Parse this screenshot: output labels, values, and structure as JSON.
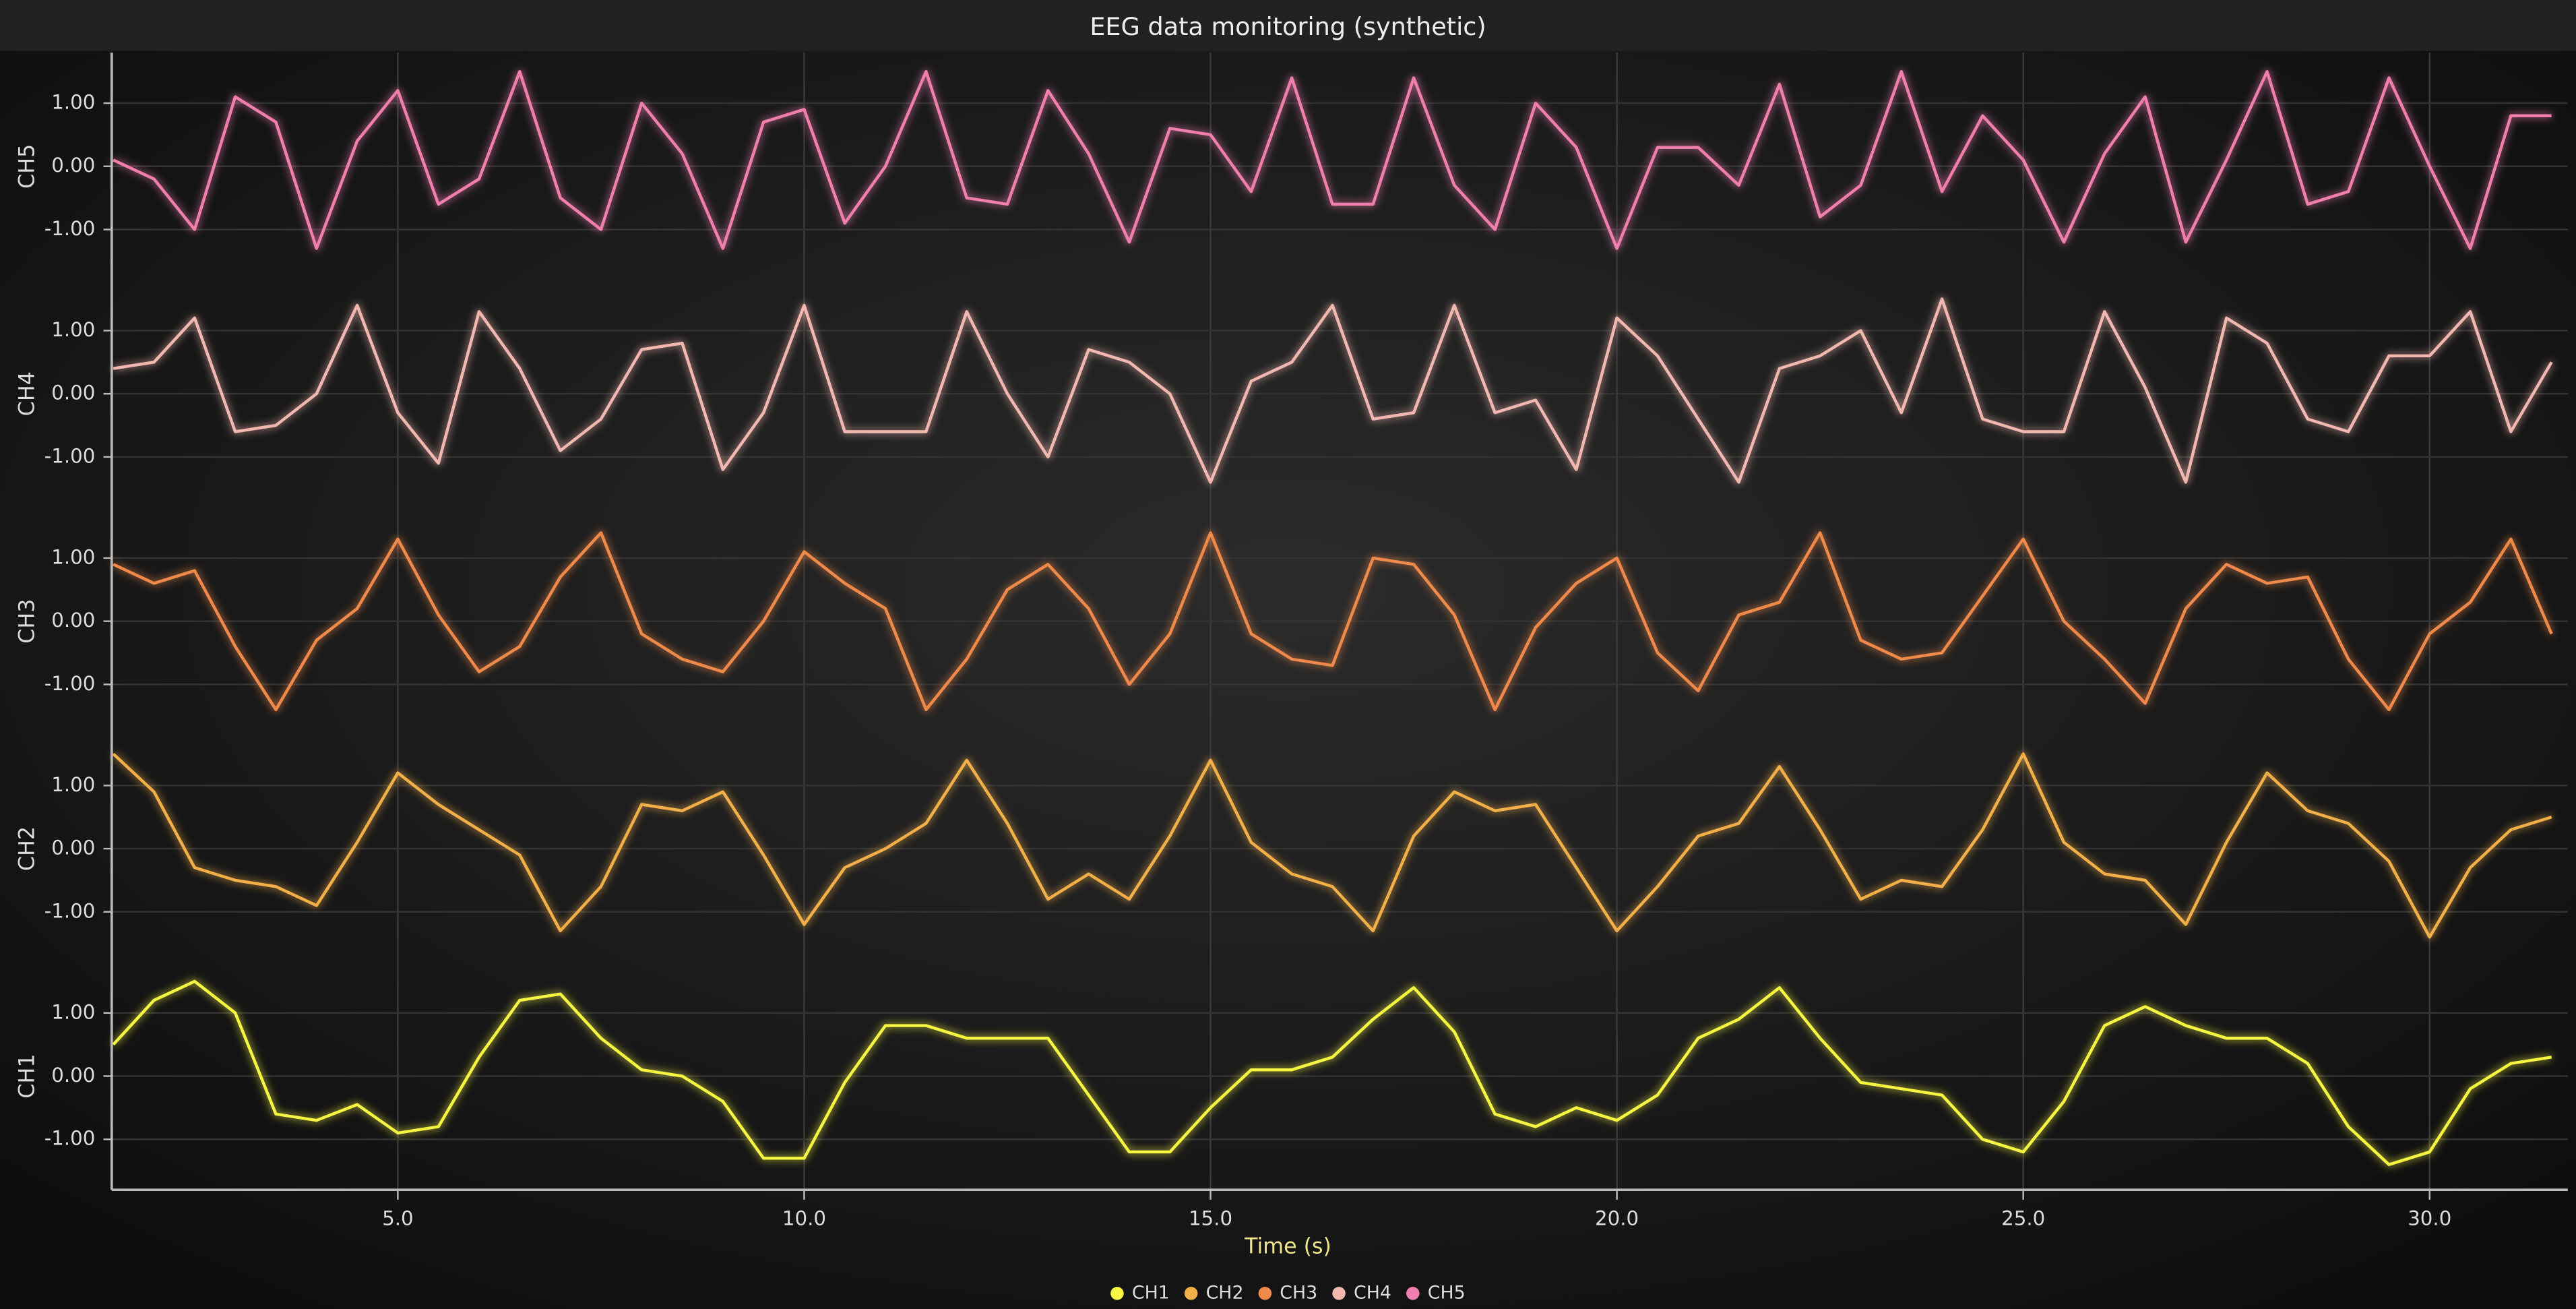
{
  "chart_data": {
    "type": "line",
    "title": "EEG data monitoring (synthetic)",
    "x_label": "Time (s)",
    "grid": true,
    "legend": "bottom",
    "x": [
      1.5,
      2,
      2.5,
      3,
      3.5,
      4,
      4.5,
      5,
      5.5,
      6,
      6.5,
      7,
      7.5,
      8,
      8.5,
      9,
      9.5,
      10,
      10.5,
      11,
      11.5,
      12,
      12.5,
      13,
      13.5,
      14,
      14.5,
      15,
      15.5,
      16,
      16.5,
      17,
      17.5,
      18,
      18.5,
      19,
      19.5,
      20,
      20.5,
      21,
      21.5,
      22,
      22.5,
      23,
      23.5,
      24,
      24.5,
      25,
      25.5,
      26,
      26.5,
      27,
      27.5,
      28,
      28.5,
      29,
      29.5,
      30,
      30.5,
      31,
      31.5
    ],
    "xlim": [
      1.48,
      31.7
    ],
    "xticks": [
      {
        "value": 5,
        "label": "5.0"
      },
      {
        "value": 10,
        "label": "10.0"
      },
      {
        "value": 15,
        "label": "15.0"
      },
      {
        "value": 20,
        "label": "20.0"
      },
      {
        "value": 25,
        "label": "25.0"
      },
      {
        "value": 30,
        "label": "30.0"
      }
    ],
    "series": [
      {
        "name": "CH1",
        "color": "#f5f542",
        "ylim": [
          -1.8,
          1.8
        ],
        "yticks": [
          {
            "value": -1,
            "label": "-1.00"
          },
          {
            "value": 0,
            "label": "0.00"
          },
          {
            "value": 1,
            "label": "1.00"
          }
        ],
        "values": [
          0.5,
          1.2,
          1.5,
          1.0,
          -0.6,
          -0.7,
          -0.45,
          -0.9,
          -0.8,
          0.3,
          1.2,
          1.3,
          0.6,
          0.1,
          0.0,
          -0.4,
          -1.3,
          -1.3,
          -0.1,
          0.8,
          0.8,
          0.6,
          0.6,
          0.6,
          -0.3,
          -1.2,
          -1.2,
          -0.5,
          0.1,
          0.1,
          0.3,
          0.9,
          1.4,
          0.7,
          -0.6,
          -0.8,
          -0.5,
          -0.7,
          -0.3,
          0.6,
          0.9,
          1.4,
          0.6,
          -0.1,
          -0.2,
          -0.3,
          -1.0,
          -1.2,
          -0.4,
          0.8,
          1.1,
          0.8,
          0.6,
          0.6,
          0.2,
          -0.8,
          -1.4,
          -1.2,
          -0.2,
          0.2,
          0.3
        ]
      },
      {
        "name": "CH2",
        "color": "#f3b04a",
        "ylim": [
          -1.8,
          1.8
        ],
        "yticks": [
          {
            "value": -1,
            "label": "-1.00"
          },
          {
            "value": 0,
            "label": "0.00"
          },
          {
            "value": 1,
            "label": "1.00"
          }
        ],
        "values": [
          1.5,
          0.9,
          -0.3,
          -0.5,
          -0.6,
          -0.9,
          0.1,
          1.2,
          0.7,
          0.3,
          -0.1,
          -1.3,
          -0.6,
          0.7,
          0.6,
          0.9,
          -0.1,
          -1.2,
          -0.3,
          0.0,
          0.4,
          1.4,
          0.4,
          -0.8,
          -0.4,
          -0.8,
          0.2,
          1.4,
          0.1,
          -0.4,
          -0.6,
          -1.3,
          0.2,
          0.9,
          0.6,
          0.7,
          -0.3,
          -1.3,
          -0.6,
          0.2,
          0.4,
          1.3,
          0.3,
          -0.8,
          -0.5,
          -0.6,
          0.3,
          1.5,
          0.1,
          -0.4,
          -0.5,
          -1.2,
          0.1,
          1.2,
          0.6,
          0.4,
          -0.2,
          -1.4,
          -0.3,
          0.3,
          0.5
        ]
      },
      {
        "name": "CH3",
        "color": "#f08a4b",
        "ylim": [
          -1.8,
          1.8
        ],
        "yticks": [
          {
            "value": -1,
            "label": "-1.00"
          },
          {
            "value": 0,
            "label": "0.00"
          },
          {
            "value": 1,
            "label": "1.00"
          }
        ],
        "values": [
          0.9,
          0.6,
          0.8,
          -0.4,
          -1.4,
          -0.3,
          0.2,
          1.3,
          0.1,
          -0.8,
          -0.4,
          0.7,
          1.4,
          -0.2,
          -0.6,
          -0.8,
          0.0,
          1.1,
          0.6,
          0.2,
          -1.4,
          -0.6,
          0.5,
          0.9,
          0.2,
          -1.0,
          -0.2,
          1.4,
          -0.2,
          -0.6,
          -0.7,
          1.0,
          0.9,
          0.1,
          -1.4,
          -0.1,
          0.6,
          1.0,
          -0.5,
          -1.1,
          0.1,
          0.3,
          1.4,
          -0.3,
          -0.6,
          -0.5,
          0.4,
          1.3,
          0.0,
          -0.6,
          -1.3,
          0.2,
          0.9,
          0.6,
          0.7,
          -0.6,
          -1.4,
          -0.2,
          0.3,
          1.3,
          -0.2
        ]
      },
      {
        "name": "CH4",
        "color": "#f2b8b0",
        "ylim": [
          -1.8,
          1.8
        ],
        "yticks": [
          {
            "value": -1,
            "label": "-1.00"
          },
          {
            "value": 0,
            "label": "0.00"
          },
          {
            "value": 1,
            "label": "1.00"
          }
        ],
        "values": [
          0.4,
          0.5,
          1.2,
          -0.6,
          -0.5,
          0.0,
          1.4,
          -0.3,
          -1.1,
          1.3,
          0.4,
          -0.9,
          -0.4,
          0.7,
          0.8,
          -1.2,
          -0.3,
          1.4,
          -0.6,
          -0.6,
          -0.6,
          1.3,
          0.0,
          -1.0,
          0.7,
          0.5,
          0.0,
          -1.4,
          0.2,
          0.5,
          1.4,
          -0.4,
          -0.3,
          1.4,
          -0.3,
          -0.1,
          -1.2,
          1.2,
          0.6,
          -0.4,
          -1.4,
          0.4,
          0.6,
          1.0,
          -0.3,
          1.5,
          -0.4,
          -0.6,
          -0.6,
          1.3,
          0.1,
          -1.4,
          1.2,
          0.8,
          -0.4,
          -0.6,
          0.6,
          0.6,
          1.3,
          -0.6,
          0.5
        ]
      },
      {
        "name": "CH5",
        "color": "#f07fae",
        "ylim": [
          -1.8,
          1.8
        ],
        "yticks": [
          {
            "value": -1,
            "label": "-1.00"
          },
          {
            "value": 0,
            "label": "0.00"
          },
          {
            "value": 1,
            "label": "1.00"
          }
        ],
        "values": [
          0.1,
          -0.2,
          -1.0,
          1.1,
          0.7,
          -1.3,
          0.4,
          1.2,
          -0.6,
          -0.2,
          1.5,
          -0.5,
          -1.0,
          1.0,
          0.2,
          -1.3,
          0.7,
          0.9,
          -0.9,
          0.0,
          1.5,
          -0.5,
          -0.6,
          1.2,
          0.2,
          -1.2,
          0.6,
          0.5,
          -0.4,
          1.4,
          -0.6,
          -0.6,
          1.4,
          -0.3,
          -1.0,
          1.0,
          0.3,
          -1.3,
          0.3,
          0.3,
          -0.3,
          1.3,
          -0.8,
          -0.3,
          1.5,
          -0.4,
          0.8,
          0.1,
          -1.2,
          0.2,
          1.1,
          -1.2,
          0.1,
          1.5,
          -0.6,
          -0.4,
          1.4,
          0.0,
          -1.3,
          0.8,
          0.8
        ]
      }
    ]
  }
}
